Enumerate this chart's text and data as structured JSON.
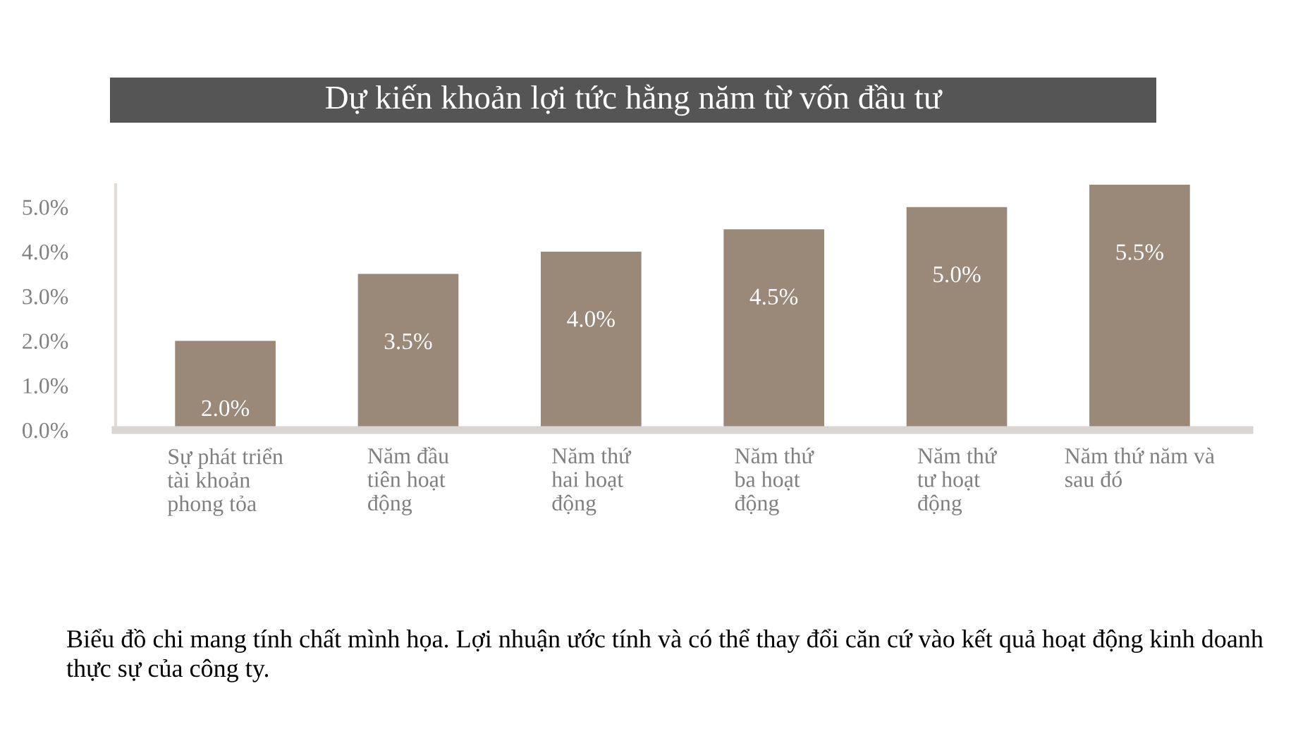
{
  "chart_data": {
    "type": "bar",
    "title": "Dự kiến khoản lợi tức hằng năm từ vốn đầu tư",
    "categories": [
      "Sự phát triển\ntài khoản\nphong tỏa",
      "Năm đầu\ntiên hoạt\nđộng",
      "Năm thứ\nhai hoạt\nđộng",
      "Năm thứ\nba hoạt\nđộng",
      "Năm thứ\ntư hoạt\nđộng",
      "Năm thứ năm và\nsau đó"
    ],
    "values": [
      2.0,
      3.5,
      4.0,
      4.5,
      5.0,
      5.5
    ],
    "value_labels": [
      "2.0%",
      "3.5%",
      "4.0%",
      "4.5%",
      "5.0%",
      "5.5%"
    ],
    "color": "#9a8878",
    "ylim": [
      0,
      5.5
    ],
    "yticks": [
      {
        "value": 0,
        "label": "0.0%"
      },
      {
        "value": 1,
        "label": "1.0%"
      },
      {
        "value": 2,
        "label": "2.0%"
      },
      {
        "value": 3,
        "label": "3.0%"
      },
      {
        "value": 4,
        "label": "4.0%"
      },
      {
        "value": 5,
        "label": "5.0%"
      }
    ],
    "grid": false,
    "legend": false,
    "annotations": [
      "Biểu đồ chi mang tính chất mình họa. Lợi nhuận ước tính và có thể thay đổi căn cứ vào kết quả hoạt động kinh doanh thực sự của công ty."
    ]
  }
}
